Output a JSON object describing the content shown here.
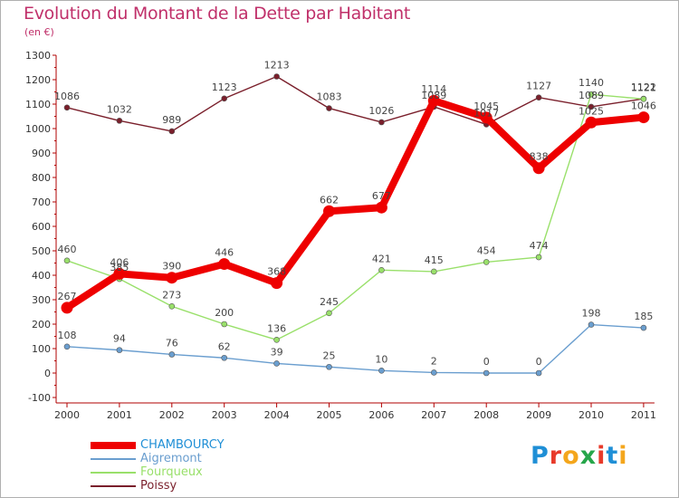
{
  "header": {
    "title": "Evolution du Montant de la Dette par Habitant",
    "unit": "(en €)"
  },
  "logo": {
    "letters": [
      "P",
      "r",
      "o",
      "x",
      "i",
      "t",
      "i"
    ],
    "colors": [
      "#1f8fd6",
      "#e83a2a",
      "#f4a61c",
      "#26a64a",
      "#e83a2a",
      "#1f8fd6",
      "#f4a61c"
    ]
  },
  "chart_data": {
    "type": "line",
    "x": [
      "2000",
      "2001",
      "2002",
      "2003",
      "2004",
      "2005",
      "2006",
      "2007",
      "2008",
      "2009",
      "2010",
      "2011"
    ],
    "ylim": [
      -100,
      1300
    ],
    "yticks": [
      -100,
      0,
      100,
      200,
      300,
      400,
      500,
      600,
      700,
      800,
      900,
      1000,
      1100,
      1200,
      1300
    ],
    "grid": false,
    "legend": "bottom-left",
    "series": [
      {
        "name": "Poissy",
        "color": "#7a1f2b",
        "values": [
          1086,
          1032,
          989,
          1123,
          1213,
          1083,
          1026,
          1089,
          1017,
          1127,
          1089,
          1122
        ]
      },
      {
        "name": "Fourqueux",
        "color": "#99e06a",
        "values": [
          460,
          385,
          273,
          200,
          136,
          245,
          421,
          415,
          454,
          474,
          1140,
          1121
        ]
      },
      {
        "name": "Aigremont",
        "color": "#6a9ecf",
        "values": [
          108,
          94,
          76,
          62,
          39,
          25,
          10,
          2,
          0,
          0,
          198,
          185
        ]
      },
      {
        "name": "CHAMBOURCY",
        "color": "#ee0000",
        "values": [
          267,
          406,
          390,
          446,
          368,
          662,
          677,
          1114,
          1045,
          838,
          1025,
          1046
        ]
      }
    ]
  }
}
